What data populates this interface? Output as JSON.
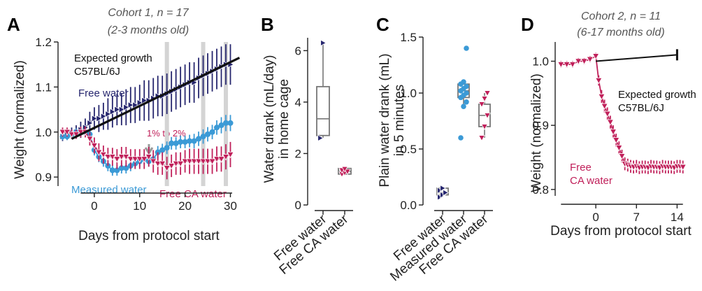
{
  "colors": {
    "free": "#26266e",
    "ca": "#c0205a",
    "measured": "#3b9ad6",
    "expected": "#111111",
    "grid": "#d4d4d4",
    "box": "#777777",
    "arrow": "#999999"
  },
  "chart_data": [
    {
      "panel": "A",
      "type": "line",
      "header": [
        "Cohort 1, n = 17",
        "(2-3 months old)"
      ],
      "xlabel": "Days from protocol start",
      "ylabel": "Weight (normalized)",
      "xlim": [
        -8,
        31
      ],
      "ylim": [
        0.88,
        1.2
      ],
      "xticks": [
        0,
        10,
        20,
        30
      ],
      "yticks": [
        0.9,
        1.0,
        1.1,
        1.2
      ],
      "vlines": [
        16,
        24,
        29
      ],
      "annotations": [
        {
          "text": "Expected growth",
          "color": "expected"
        },
        {
          "text": "C57BL/6J",
          "color": "expected"
        },
        {
          "text": "Free water",
          "color": "free"
        },
        {
          "text": "Measured water",
          "color": "measured"
        },
        {
          "text": "Free CA water",
          "color": "ca"
        },
        {
          "text": "1% to 2%",
          "color": "ca"
        }
      ],
      "series": [
        {
          "name": "Expected growth",
          "color": "expected",
          "marker": "none",
          "x": [
            -5,
            32
          ],
          "y": [
            0.985,
            1.165
          ],
          "err": []
        },
        {
          "name": "Free water",
          "color": "free",
          "marker": "tri-right",
          "x": [
            -7,
            -6,
            -5,
            -4,
            -3,
            -2,
            -1,
            0,
            1,
            2,
            3,
            4,
            5,
            6,
            7,
            8,
            9,
            10,
            11,
            12,
            13,
            14,
            15,
            16,
            17,
            18,
            19,
            20,
            21,
            22,
            23,
            24,
            25,
            26,
            27,
            28,
            29,
            30
          ],
          "y": [
            0.99,
            0.995,
            0.998,
            1.0,
            1.005,
            1.01,
            1.02,
            1.03,
            1.03,
            1.035,
            1.04,
            1.045,
            1.05,
            1.05,
            1.055,
            1.06,
            1.06,
            1.065,
            1.07,
            1.07,
            1.075,
            1.08,
            1.08,
            1.085,
            1.09,
            1.095,
            1.1,
            1.105,
            1.11,
            1.11,
            1.12,
            1.125,
            1.13,
            1.135,
            1.14,
            1.145,
            1.15,
            1.15
          ],
          "err": [
            0.01,
            0.01,
            0.012,
            0.015,
            0.018,
            0.02,
            0.025,
            0.025,
            0.03,
            0.03,
            0.035,
            0.035,
            0.035,
            0.035,
            0.04,
            0.04,
            0.04,
            0.04,
            0.045,
            0.045,
            0.045,
            0.045,
            0.045,
            0.045,
            0.045,
            0.045,
            0.045,
            0.045,
            0.045,
            0.045,
            0.045,
            0.045,
            0.045,
            0.045,
            0.045,
            0.045,
            0.045,
            0.045
          ]
        },
        {
          "name": "Measured water",
          "color": "measured",
          "marker": "circle",
          "x": [
            -7,
            -6,
            -5,
            -4,
            -3,
            -2,
            -1,
            0,
            1,
            2,
            3,
            4,
            5,
            6,
            7,
            8,
            9,
            10,
            11,
            12,
            13,
            14,
            15,
            16,
            17,
            18,
            19,
            20,
            21,
            22,
            23,
            24,
            25,
            26,
            27,
            28,
            29,
            30
          ],
          "y": [
            0.99,
            0.99,
            0.995,
            1.0,
            1.0,
            1.0,
            0.995,
            0.96,
            0.945,
            0.935,
            0.925,
            0.915,
            0.915,
            0.92,
            0.92,
            0.925,
            0.93,
            0.935,
            0.94,
            0.935,
            0.94,
            0.955,
            0.96,
            0.965,
            0.975,
            0.975,
            0.978,
            0.978,
            0.98,
            0.98,
            0.985,
            0.99,
            0.995,
            1.0,
            1.01,
            1.015,
            1.02,
            1.02
          ],
          "err": [
            0.008,
            0.008,
            0.008,
            0.008,
            0.01,
            0.01,
            0.01,
            0.012,
            0.012,
            0.012,
            0.012,
            0.012,
            0.012,
            0.012,
            0.012,
            0.012,
            0.012,
            0.012,
            0.012,
            0.012,
            0.012,
            0.014,
            0.014,
            0.014,
            0.014,
            0.014,
            0.014,
            0.014,
            0.014,
            0.016,
            0.016,
            0.016,
            0.016,
            0.016,
            0.016,
            0.018,
            0.018,
            0.018
          ]
        },
        {
          "name": "Free CA water",
          "color": "ca",
          "marker": "tri-down",
          "x": [
            -7,
            -6,
            -5,
            -4,
            -3,
            -2,
            -1,
            0,
            1,
            2,
            3,
            4,
            5,
            6,
            7,
            8,
            9,
            10,
            11,
            12,
            13,
            14,
            15,
            16,
            17,
            18,
            19,
            20,
            21,
            22,
            23,
            24,
            25,
            26,
            27,
            28,
            29,
            30
          ],
          "y": [
            1.0,
            1.0,
            0.995,
            0.995,
            1.0,
            1.0,
            0.985,
            0.97,
            0.955,
            0.95,
            0.945,
            0.945,
            0.94,
            0.945,
            0.945,
            0.94,
            0.94,
            0.94,
            0.94,
            0.945,
            0.935,
            0.93,
            0.93,
            0.92,
            0.925,
            0.93,
            0.93,
            0.935,
            0.935,
            0.935,
            0.935,
            0.935,
            0.935,
            0.935,
            0.94,
            0.94,
            0.945,
            0.95
          ],
          "err": [
            0.01,
            0.01,
            0.01,
            0.01,
            0.012,
            0.012,
            0.015,
            0.018,
            0.02,
            0.02,
            0.02,
            0.02,
            0.022,
            0.022,
            0.022,
            0.022,
            0.022,
            0.022,
            0.022,
            0.022,
            0.025,
            0.025,
            0.025,
            0.025,
            0.025,
            0.025,
            0.025,
            0.025,
            0.028,
            0.028,
            0.028,
            0.028,
            0.028,
            0.028,
            0.028,
            0.028,
            0.028,
            0.028
          ]
        }
      ]
    },
    {
      "panel": "B",
      "type": "box",
      "ylabel": [
        "Water drank  (mL/day)",
        "in home cage"
      ],
      "ylim": [
        0,
        6.5
      ],
      "yticks": [
        0,
        2,
        4,
        6
      ],
      "categories": [
        "Free water",
        "Free CA water"
      ],
      "category_colors": [
        "free",
        "ca"
      ],
      "boxes": [
        {
          "q1": 2.7,
          "median": 3.35,
          "q3": 4.6,
          "whisker_low": 2.6,
          "whisker_high": 6.3,
          "points": [
            2.6,
            6.3
          ],
          "marker": "tri-right"
        },
        {
          "q1": 1.2,
          "median": 1.3,
          "q3": 1.42,
          "whisker_low": 1.15,
          "whisker_high": 1.45,
          "points": [
            1.2,
            1.25,
            1.3,
            1.35,
            1.4
          ],
          "marker": "tri-down"
        }
      ]
    },
    {
      "panel": "C",
      "type": "box",
      "ylabel": [
        "Plain water drank (mL)",
        "in 5 minutes"
      ],
      "ylim": [
        0,
        1.5
      ],
      "yticks": [
        0.0,
        0.5,
        1.0,
        1.5
      ],
      "categories": [
        "Free water",
        "Measured water",
        "Free CA water"
      ],
      "category_colors": [
        "free",
        "measured",
        "ca"
      ],
      "boxes": [
        {
          "q1": 0.09,
          "median": 0.11,
          "q3": 0.15,
          "whisker_low": 0.07,
          "whisker_high": 0.16,
          "points": [
            0.07,
            0.09,
            0.11,
            0.13,
            0.15
          ],
          "marker": "tri-right"
        },
        {
          "q1": 0.96,
          "median": 1.02,
          "q3": 1.08,
          "whisker_low": 0.88,
          "whisker_high": 1.1,
          "points": [
            0.6,
            0.88,
            0.92,
            0.96,
            0.98,
            1.0,
            1.02,
            1.04,
            1.06,
            1.08,
            1.1,
            1.4
          ],
          "marker": "circle"
        },
        {
          "q1": 0.7,
          "median": 0.8,
          "q3": 0.9,
          "whisker_low": 0.6,
          "whisker_high": 1.0,
          "points": [
            0.6,
            0.7,
            0.8,
            0.9,
            0.95,
            1.0
          ],
          "marker": "tri-down"
        }
      ]
    },
    {
      "panel": "D",
      "type": "line",
      "header": [
        "Cohort 2, n = 11",
        "(6-17 months old)"
      ],
      "xlabel": "Days from protocol start",
      "ylabel": "Weight (normalized)",
      "xlim": [
        -7,
        16
      ],
      "ylim": [
        0.79,
        1.03
      ],
      "xticks": [
        0,
        7,
        14
      ],
      "yticks": [
        0.8,
        0.9,
        1.0
      ],
      "annotations": [
        {
          "text": "Expected growth",
          "color": "expected"
        },
        {
          "text": "C57BL/6J",
          "color": "expected"
        },
        {
          "text": "Free",
          "color": "ca"
        },
        {
          "text": "CA water",
          "color": "ca"
        }
      ],
      "series": [
        {
          "name": "Expected growth",
          "color": "expected",
          "marker": "none",
          "x": [
            0,
            14
          ],
          "y": [
            1.0,
            1.01
          ],
          "err": []
        },
        {
          "name": "Free CA water",
          "color": "ca",
          "marker": "tri-down",
          "x": [
            -6,
            -5,
            -4,
            -3,
            -2,
            -1,
            0,
            0.5,
            1,
            1.5,
            2,
            2.5,
            3,
            3.5,
            4,
            4.5,
            5,
            5.5,
            6,
            6.5,
            7,
            7.5,
            8,
            8.5,
            9,
            9.5,
            10,
            10.5,
            11,
            11.5,
            12,
            12.5,
            13,
            13.5,
            14,
            14.5,
            15
          ],
          "y": [
            0.995,
            0.995,
            0.995,
            1.0,
            1.0,
            1.003,
            1.008,
            0.97,
            0.945,
            0.93,
            0.918,
            0.905,
            0.89,
            0.877,
            0.865,
            0.852,
            0.84,
            0.838,
            0.836,
            0.835,
            0.836,
            0.834,
            0.835,
            0.835,
            0.834,
            0.836,
            0.835,
            0.835,
            0.834,
            0.836,
            0.835,
            0.835,
            0.835,
            0.834,
            0.836,
            0.836,
            0.835
          ],
          "err": [
            0.005,
            0.005,
            0.005,
            0.005,
            0.005,
            0.005,
            0.005,
            0.008,
            0.01,
            0.01,
            0.01,
            0.01,
            0.01,
            0.01,
            0.01,
            0.01,
            0.01,
            0.01,
            0.01,
            0.01,
            0.01,
            0.01,
            0.01,
            0.01,
            0.01,
            0.01,
            0.01,
            0.01,
            0.01,
            0.01,
            0.01,
            0.01,
            0.01,
            0.01,
            0.01,
            0.01,
            0.01
          ]
        }
      ]
    }
  ]
}
